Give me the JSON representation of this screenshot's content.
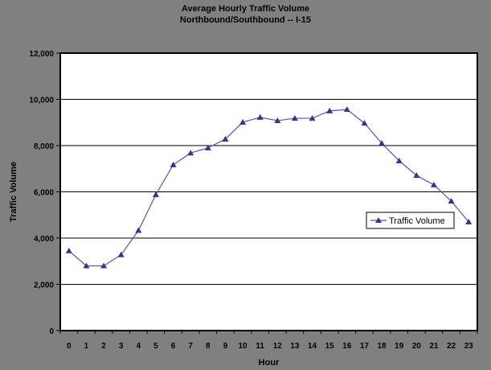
{
  "chart_data": {
    "type": "line",
    "title": "Average Hourly Traffic Volume",
    "subtitle": "Northbound/Southbound -- I-15",
    "xlabel": "Hour",
    "ylabel": "Traffic Volume",
    "ylim": [
      0,
      12000
    ],
    "yticks": [
      "0",
      "2,000",
      "4,000",
      "6,000",
      "8,000",
      "10,000",
      "12,000"
    ],
    "grid": true,
    "legend_position": "right",
    "categories": [
      "0",
      "1",
      "2",
      "3",
      "4",
      "5",
      "6",
      "7",
      "8",
      "9",
      "10",
      "11",
      "12",
      "13",
      "14",
      "15",
      "16",
      "17",
      "18",
      "19",
      "20",
      "21",
      "22",
      "23"
    ],
    "series": [
      {
        "name": "Traffic Volume",
        "color": "#333399",
        "marker": "triangle",
        "values": [
          3450,
          2800,
          2800,
          3280,
          4330,
          5880,
          7170,
          7680,
          7900,
          8280,
          9010,
          9220,
          9080,
          9180,
          9180,
          9500,
          9560,
          8970,
          8100,
          7340,
          6710,
          6300,
          5600,
          4700
        ]
      }
    ]
  }
}
